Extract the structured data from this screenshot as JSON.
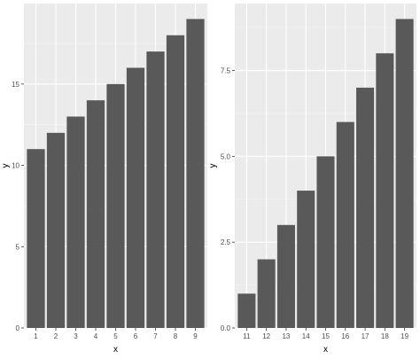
{
  "chart_data": [
    {
      "type": "bar",
      "x": [
        1,
        2,
        3,
        4,
        5,
        6,
        7,
        8,
        9
      ],
      "values": [
        11,
        12,
        13,
        14,
        15,
        16,
        17,
        18,
        19
      ],
      "xlabel": "x",
      "ylabel": "y",
      "ylim": [
        0,
        19.95
      ],
      "yticks": [
        0,
        5,
        10,
        15
      ],
      "ytick_labels": [
        "0",
        "5",
        "10",
        "15"
      ],
      "xtick_labels": [
        "1",
        "2",
        "3",
        "4",
        "5",
        "6",
        "7",
        "8",
        "9"
      ],
      "grid": true,
      "bar_color": "#595959",
      "panel_color": "#ebebeb"
    },
    {
      "type": "bar",
      "x": [
        11,
        12,
        13,
        14,
        15,
        16,
        17,
        18,
        19
      ],
      "values": [
        1,
        2,
        3,
        4,
        5,
        6,
        7,
        8,
        9
      ],
      "xlabel": "x",
      "ylabel": "y",
      "ylim": [
        0,
        9.45
      ],
      "yticks": [
        0,
        2.5,
        5,
        7.5
      ],
      "ytick_labels": [
        "0.0",
        "2.5",
        "5.0",
        "7.5"
      ],
      "xtick_labels": [
        "11",
        "12",
        "13",
        "14",
        "15",
        "16",
        "17",
        "18",
        "19"
      ],
      "grid": true,
      "bar_color": "#595959",
      "panel_color": "#ebebeb"
    }
  ]
}
